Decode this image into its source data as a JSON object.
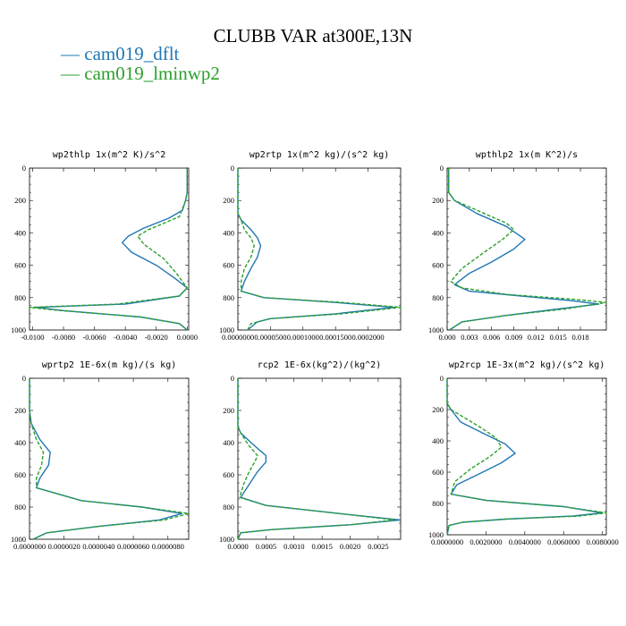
{
  "title": "CLUBB VAR at300E,13N",
  "legend": [
    {
      "label": "— cam019_dflt",
      "color": "#1f77b4"
    },
    {
      "label": "— cam019_lminwp2",
      "color": "#2ca02c"
    }
  ],
  "chart_data": [
    {
      "type": "line",
      "title": "wp2thlp   1x(m^2 K)/s^2",
      "xlim": [
        -0.0102,
        0.0001
      ],
      "ylim": [
        1000,
        0
      ],
      "yticks": [
        0,
        200,
        400,
        600,
        800,
        1000
      ],
      "xticks": [
        "-0.0100",
        "-0.0080",
        "-0.0060",
        "-0.0040",
        "-0.0020",
        "0.0000"
      ],
      "series": [
        {
          "name": "cam019_dflt",
          "points": [
            [
              0,
              0
            ],
            [
              0,
              100
            ],
            [
              0,
              150
            ],
            [
              -0.0001,
              200
            ],
            [
              -0.0003,
              260
            ],
            [
              -0.0012,
              310
            ],
            [
              -0.0028,
              370
            ],
            [
              -0.0038,
              420
            ],
            [
              -0.0042,
              460
            ],
            [
              -0.0036,
              520
            ],
            [
              -0.002,
              600
            ],
            [
              -0.0008,
              680
            ],
            [
              0,
              740
            ],
            [
              -0.0005,
              790
            ],
            [
              -0.004,
              840
            ],
            [
              -0.0098,
              860
            ],
            [
              -0.008,
              880
            ],
            [
              -0.003,
              920
            ],
            [
              -0.0005,
              960
            ],
            [
              0,
              1000
            ]
          ]
        },
        {
          "name": "cam019_lminwp2",
          "points": [
            [
              0,
              0
            ],
            [
              0,
              100
            ],
            [
              0,
              150
            ],
            [
              -0.0001,
              200
            ],
            [
              -0.0005,
              300
            ],
            [
              -0.0025,
              380
            ],
            [
              -0.0032,
              420
            ],
            [
              -0.0028,
              470
            ],
            [
              -0.0015,
              560
            ],
            [
              -0.0007,
              650
            ],
            [
              0,
              740
            ],
            [
              -0.0005,
              790
            ],
            [
              -0.0045,
              840
            ],
            [
              -0.0102,
              860
            ],
            [
              -0.0082,
              880
            ],
            [
              -0.003,
              920
            ],
            [
              -0.0005,
              960
            ],
            [
              0,
              1000
            ]
          ]
        }
      ]
    },
    {
      "type": "line",
      "title": "wp2rtp   1x(m^2 kg)/(s^2 kg)",
      "xlim": [
        0,
        0.00025
      ],
      "ylim": [
        1000,
        0
      ],
      "yticks": [
        0,
        200,
        400,
        600,
        800,
        1000
      ],
      "xticks": [
        "0.0000000",
        "0.0000500",
        "0.0001000",
        "0.0001500",
        "0.0002000"
      ],
      "series": [
        {
          "name": "cam019_dflt",
          "points": [
            [
              0,
              0
            ],
            [
              0,
              200
            ],
            [
              0,
              280
            ],
            [
              5e-06,
              320
            ],
            [
              2e-05,
              380
            ],
            [
              3e-05,
              430
            ],
            [
              3.5e-05,
              480
            ],
            [
              3e-05,
              550
            ],
            [
              2e-05,
              620
            ],
            [
              1e-05,
              700
            ],
            [
              5e-06,
              760
            ],
            [
              4e-05,
              800
            ],
            [
              0.00015,
              830
            ],
            [
              0.00024,
              860
            ],
            [
              0.00015,
              900
            ],
            [
              5e-05,
              930
            ],
            [
              3e-05,
              950
            ],
            [
              1.5e-05,
              1000
            ]
          ]
        },
        {
          "name": "cam019_lminwp2",
          "points": [
            [
              0,
              0
            ],
            [
              0,
              200
            ],
            [
              0,
              280
            ],
            [
              5e-06,
              320
            ],
            [
              1e-05,
              380
            ],
            [
              2e-05,
              430
            ],
            [
              2.5e-05,
              480
            ],
            [
              2e-05,
              550
            ],
            [
              1e-05,
              620
            ],
            [
              5e-06,
              700
            ],
            [
              5e-06,
              760
            ],
            [
              4e-05,
              800
            ],
            [
              0.00016,
              830
            ],
            [
              0.00025,
              860
            ],
            [
              0.00016,
              900
            ],
            [
              5e-05,
              930
            ],
            [
              2e-05,
              960
            ],
            [
              1.5e-05,
              1000
            ]
          ]
        }
      ]
    },
    {
      "type": "line",
      "title": "wpthlp2   1x(m K^2)/s",
      "xlim": [
        0,
        0.0215
      ],
      "ylim": [
        1000,
        0
      ],
      "yticks": [
        0,
        200,
        400,
        600,
        800,
        1000
      ],
      "xticks": [
        "0.000",
        "0.003",
        "0.006",
        "0.009",
        "0.012",
        "0.015",
        "0.018"
      ],
      "series": [
        {
          "name": "cam019_dflt",
          "points": [
            [
              0.0002,
              0
            ],
            [
              0.0002,
              100
            ],
            [
              0.0002,
              150
            ],
            [
              0.001,
              200
            ],
            [
              0.004,
              280
            ],
            [
              0.008,
              360
            ],
            [
              0.0105,
              440
            ],
            [
              0.009,
              500
            ],
            [
              0.006,
              580
            ],
            [
              0.003,
              650
            ],
            [
              0.001,
              720
            ],
            [
              0.003,
              760
            ],
            [
              0.01,
              790
            ],
            [
              0.017,
              820
            ],
            [
              0.0205,
              840
            ],
            [
              0.015,
              870
            ],
            [
              0.008,
              910
            ],
            [
              0.002,
              950
            ],
            [
              0.0003,
              1000
            ]
          ]
        },
        {
          "name": "cam019_lminwp2",
          "points": [
            [
              0.0002,
              0
            ],
            [
              0.0002,
              100
            ],
            [
              0.0002,
              150
            ],
            [
              0.001,
              200
            ],
            [
              0.005,
              280
            ],
            [
              0.008,
              340
            ],
            [
              0.009,
              380
            ],
            [
              0.0075,
              440
            ],
            [
              0.005,
              520
            ],
            [
              0.002,
              620
            ],
            [
              0.0005,
              700
            ],
            [
              0.002,
              740
            ],
            [
              0.008,
              780
            ],
            [
              0.017,
              810
            ],
            [
              0.0215,
              830
            ],
            [
              0.016,
              870
            ],
            [
              0.008,
              910
            ],
            [
              0.002,
              950
            ],
            [
              0.0003,
              1000
            ]
          ]
        }
      ]
    },
    {
      "type": "line",
      "title": "wprtp2   1E-6x(m kg)/(s kg)",
      "xlim": [
        0,
        9.2e-06
      ],
      "ylim": [
        1000,
        0
      ],
      "yticks": [
        0,
        200,
        400,
        600,
        800,
        1000
      ],
      "xticks": [
        "0.0000000",
        "0.0000020",
        "0.0000040",
        "0.0000060",
        "0.0000080"
      ],
      "xtick_values": [
        0,
        2e-06,
        4e-06,
        6e-06,
        8e-06
      ],
      "series": [
        {
          "name": "cam019_dflt",
          "points": [
            [
              0,
              0
            ],
            [
              0,
              200
            ],
            [
              1e-07,
              280
            ],
            [
              6e-07,
              380
            ],
            [
              1.2e-06,
              460
            ],
            [
              1.1e-06,
              540
            ],
            [
              6e-07,
              620
            ],
            [
              4e-07,
              680
            ],
            [
              3e-06,
              760
            ],
            [
              6.5e-06,
              800
            ],
            [
              8.8e-06,
              840
            ],
            [
              7.5e-06,
              880
            ],
            [
              4e-06,
              920
            ],
            [
              1e-06,
              960
            ],
            [
              2e-07,
              1000
            ]
          ]
        },
        {
          "name": "cam019_lminwp2",
          "points": [
            [
              0,
              0
            ],
            [
              0,
              200
            ],
            [
              1e-07,
              280
            ],
            [
              4e-07,
              380
            ],
            [
              8e-07,
              460
            ],
            [
              7e-07,
              540
            ],
            [
              4e-07,
              620
            ],
            [
              4e-07,
              680
            ],
            [
              3e-06,
              760
            ],
            [
              6.5e-06,
              800
            ],
            [
              9.2e-06,
              840
            ],
            [
              7.8e-06,
              880
            ],
            [
              4e-06,
              920
            ],
            [
              1e-06,
              960
            ],
            [
              2e-07,
              1000
            ]
          ]
        }
      ]
    },
    {
      "type": "line",
      "title": "rcp2   1E-6x(kg^2)/(kg^2)",
      "xlim": [
        0,
        0.0029
      ],
      "ylim": [
        1000,
        0
      ],
      "yticks": [
        0,
        200,
        400,
        600,
        800,
        1000
      ],
      "xticks": [
        "0.0000",
        "0.0005",
        "0.0010",
        "0.0015",
        "0.0020",
        "0.0025"
      ],
      "series": [
        {
          "name": "cam019_dflt",
          "points": [
            [
              0,
              0
            ],
            [
              0,
              200
            ],
            [
              0,
              300
            ],
            [
              5e-05,
              340
            ],
            [
              0.0003,
              420
            ],
            [
              0.0005,
              480
            ],
            [
              0.0005,
              520
            ],
            [
              0.00035,
              580
            ],
            [
              0.0002,
              660
            ],
            [
              5e-05,
              740
            ],
            [
              0.0005,
              790
            ],
            [
              0.0018,
              840
            ],
            [
              0.0029,
              880
            ],
            [
              0.002,
              910
            ],
            [
              0.0006,
              940
            ],
            [
              5e-05,
              960
            ],
            [
              0,
              1000
            ]
          ]
        },
        {
          "name": "cam019_lminwp2",
          "points": [
            [
              0,
              0
            ],
            [
              0,
              200
            ],
            [
              0,
              300
            ],
            [
              5e-05,
              340
            ],
            [
              0.0002,
              420
            ],
            [
              0.00035,
              480
            ],
            [
              0.0003,
              520
            ],
            [
              0.0002,
              580
            ],
            [
              0.0001,
              660
            ],
            [
              3e-05,
              740
            ],
            [
              0.0005,
              790
            ],
            [
              0.0018,
              840
            ],
            [
              0.0028,
              880
            ],
            [
              0.002,
              910
            ],
            [
              0.0006,
              940
            ],
            [
              5e-05,
              960
            ],
            [
              0,
              1000
            ]
          ]
        }
      ]
    },
    {
      "type": "line",
      "title": "wp2rcp   1E-3x(m^2 kg)/(s^2 kg)",
      "xlim": [
        0,
        0.0082
      ],
      "ylim": [
        1000,
        0
      ],
      "yticks": [
        0,
        200,
        400,
        600,
        800,
        1000
      ],
      "xticks": [
        "0.0000000",
        "0.0020000",
        "0.0040000",
        "0.0060000",
        "0.0080000"
      ],
      "xtick_values": [
        0,
        0.002,
        0.004,
        0.006,
        0.008
      ],
      "series": [
        {
          "name": "cam019_dflt",
          "points": [
            [
              0,
              0
            ],
            [
              0,
              160
            ],
            [
              0.0002,
              200
            ],
            [
              0.0007,
              280
            ],
            [
              0.002,
              360
            ],
            [
              0.003,
              420
            ],
            [
              0.0035,
              480
            ],
            [
              0.0028,
              540
            ],
            [
              0.0015,
              620
            ],
            [
              0.0005,
              680
            ],
            [
              0.0002,
              740
            ],
            [
              0.002,
              780
            ],
            [
              0.006,
              820
            ],
            [
              0.008,
              860
            ],
            [
              0.0065,
              880
            ],
            [
              0.003,
              900
            ],
            [
              0.0008,
              920
            ],
            [
              0.0001,
              940
            ],
            [
              0,
              1000
            ]
          ]
        },
        {
          "name": "cam019_lminwp2",
          "points": [
            [
              0,
              0
            ],
            [
              0,
              160
            ],
            [
              0.0002,
              200
            ],
            [
              0.001,
              260
            ],
            [
              0.0018,
              320
            ],
            [
              0.0025,
              380
            ],
            [
              0.0028,
              440
            ],
            [
              0.0022,
              500
            ],
            [
              0.0012,
              580
            ],
            [
              0.0004,
              660
            ],
            [
              0.0002,
              740
            ],
            [
              0.002,
              780
            ],
            [
              0.006,
              820
            ],
            [
              0.0082,
              860
            ],
            [
              0.0068,
              880
            ],
            [
              0.003,
              900
            ],
            [
              0.0008,
              920
            ],
            [
              0.0001,
              940
            ],
            [
              0,
              1000
            ]
          ]
        }
      ]
    }
  ]
}
